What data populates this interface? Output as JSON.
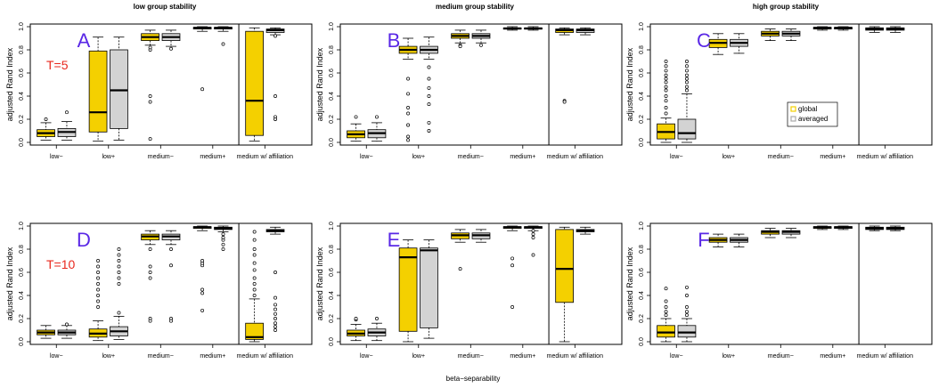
{
  "figure": {
    "column_titles": [
      "low group stability",
      "medium group stability",
      "high group stability"
    ],
    "xlabel": "beta−separability",
    "ylabel": "adjusted Rand Index",
    "categories": [
      "low−",
      "low+",
      "medium−",
      "medium+",
      "medium w/ affiliation"
    ],
    "y_ticks": [
      "0.0",
      "0.2",
      "0.4",
      "0.6",
      "0.8",
      "1.0"
    ],
    "legend": {
      "global": "global",
      "averaged": "averaged"
    },
    "colors": {
      "global": "#f4d000",
      "averaged": "#d3d3d3",
      "letter": "#5a28e6",
      "tlabel": "#e8281e"
    }
  },
  "chart_data": [
    {
      "type": "box",
      "panel": "A",
      "title": "low group stability",
      "annotation": "T=5",
      "xlabel": "",
      "ylabel": "adjusted Rand Index",
      "ylim": [
        0,
        1
      ],
      "categories": [
        "low−",
        "low+",
        "medium−",
        "medium+",
        "medium w/ affiliation"
      ],
      "series": [
        {
          "name": "global",
          "boxes": [
            {
              "min": 0.02,
              "q1": 0.05,
              "median": 0.08,
              "q3": 0.11,
              "max": 0.17,
              "outliers": [
                0.2
              ]
            },
            {
              "min": 0.01,
              "q1": 0.09,
              "median": 0.26,
              "q3": 0.79,
              "max": 0.91,
              "outliers": []
            },
            {
              "min": 0.84,
              "q1": 0.88,
              "median": 0.91,
              "q3": 0.94,
              "max": 0.97,
              "outliers": [
                0.4,
                0.35,
                0.03,
                0.8,
                0.82
              ]
            },
            {
              "min": 0.96,
              "q1": 0.98,
              "median": 0.99,
              "q3": 0.995,
              "max": 1.0,
              "outliers": [
                0.46
              ]
            },
            {
              "min": 0.01,
              "q1": 0.06,
              "median": 0.36,
              "q3": 0.96,
              "max": 0.99,
              "outliers": []
            }
          ]
        },
        {
          "name": "averaged",
          "boxes": [
            {
              "min": 0.02,
              "q1": 0.05,
              "median": 0.09,
              "q3": 0.12,
              "max": 0.18,
              "outliers": [
                0.26
              ]
            },
            {
              "min": 0.02,
              "q1": 0.12,
              "median": 0.45,
              "q3": 0.8,
              "max": 0.91,
              "outliers": []
            },
            {
              "min": 0.83,
              "q1": 0.88,
              "median": 0.91,
              "q3": 0.94,
              "max": 0.97,
              "outliers": [
                0.81
              ]
            },
            {
              "min": 0.96,
              "q1": 0.98,
              "median": 0.99,
              "q3": 0.995,
              "max": 1.0,
              "outliers": [
                0.85
              ]
            },
            {
              "min": 0.93,
              "q1": 0.95,
              "median": 0.97,
              "q3": 0.98,
              "max": 0.99,
              "outliers": [
                0.4,
                0.22,
                0.2,
                0.92
              ]
            }
          ]
        }
      ]
    },
    {
      "type": "box",
      "panel": "B",
      "title": "medium group stability",
      "xlabel": "",
      "ylabel": "adjusted Rand Index",
      "ylim": [
        0,
        1
      ],
      "categories": [
        "low−",
        "low+",
        "medium−",
        "medium+",
        "medium w/ affiliation"
      ],
      "series": [
        {
          "name": "global",
          "boxes": [
            {
              "min": 0.01,
              "q1": 0.04,
              "median": 0.07,
              "q3": 0.1,
              "max": 0.16,
              "outliers": [
                0.22
              ]
            },
            {
              "min": 0.72,
              "q1": 0.77,
              "median": 0.8,
              "q3": 0.83,
              "max": 0.9,
              "outliers": [
                0.55,
                0.42,
                0.3,
                0.25,
                0.15,
                0.05,
                0.02
              ]
            },
            {
              "min": 0.86,
              "q1": 0.9,
              "median": 0.92,
              "q3": 0.94,
              "max": 0.97,
              "outliers": [
                0.84,
                0.83
              ]
            },
            {
              "min": 0.97,
              "q1": 0.98,
              "median": 0.985,
              "q3": 0.99,
              "max": 1.0,
              "outliers": []
            },
            {
              "min": 0.93,
              "q1": 0.95,
              "median": 0.97,
              "q3": 0.98,
              "max": 0.99,
              "outliers": [
                0.36,
                0.35
              ]
            }
          ]
        },
        {
          "name": "averaged",
          "boxes": [
            {
              "min": 0.01,
              "q1": 0.04,
              "median": 0.08,
              "q3": 0.11,
              "max": 0.17,
              "outliers": [
                0.22
              ]
            },
            {
              "min": 0.72,
              "q1": 0.77,
              "median": 0.8,
              "q3": 0.83,
              "max": 0.91,
              "outliers": [
                0.65,
                0.55,
                0.47,
                0.4,
                0.33,
                0.17,
                0.1
              ]
            },
            {
              "min": 0.86,
              "q1": 0.9,
              "median": 0.92,
              "q3": 0.94,
              "max": 0.97,
              "outliers": [
                0.84
              ]
            },
            {
              "min": 0.97,
              "q1": 0.98,
              "median": 0.985,
              "q3": 0.99,
              "max": 1.0,
              "outliers": []
            },
            {
              "min": 0.93,
              "q1": 0.95,
              "median": 0.97,
              "q3": 0.98,
              "max": 0.99,
              "outliers": []
            }
          ]
        }
      ]
    },
    {
      "type": "box",
      "panel": "C",
      "title": "high group stability",
      "xlabel": "",
      "ylabel": "adjusted Rand Index",
      "ylim": [
        0,
        1
      ],
      "legend": "center-right",
      "categories": [
        "low−",
        "low+",
        "medium−",
        "medium+",
        "medium w/ affiliation"
      ],
      "series": [
        {
          "name": "global",
          "boxes": [
            {
              "min": 0.0,
              "q1": 0.03,
              "median": 0.09,
              "q3": 0.16,
              "max": 0.21,
              "outliers": [
                0.25,
                0.3,
                0.36,
                0.4,
                0.45,
                0.48,
                0.52,
                0.55,
                0.58,
                0.62,
                0.66,
                0.7
              ]
            },
            {
              "min": 0.76,
              "q1": 0.82,
              "median": 0.86,
              "q3": 0.89,
              "max": 0.94,
              "outliers": []
            },
            {
              "min": 0.88,
              "q1": 0.92,
              "median": 0.94,
              "q3": 0.96,
              "max": 0.98,
              "outliers": []
            },
            {
              "min": 0.97,
              "q1": 0.98,
              "median": 0.99,
              "q3": 0.995,
              "max": 1.0,
              "outliers": []
            },
            {
              "min": 0.95,
              "q1": 0.97,
              "median": 0.98,
              "q3": 0.99,
              "max": 1.0,
              "outliers": []
            }
          ]
        },
        {
          "name": "averaged",
          "boxes": [
            {
              "min": 0.0,
              "q1": 0.03,
              "median": 0.08,
              "q3": 0.2,
              "max": 0.42,
              "outliers": [
                0.45,
                0.48,
                0.52,
                0.55,
                0.58,
                0.62,
                0.66,
                0.7
              ]
            },
            {
              "min": 0.77,
              "q1": 0.83,
              "median": 0.86,
              "q3": 0.89,
              "max": 0.94,
              "outliers": []
            },
            {
              "min": 0.88,
              "q1": 0.92,
              "median": 0.94,
              "q3": 0.96,
              "max": 0.98,
              "outliers": []
            },
            {
              "min": 0.97,
              "q1": 0.98,
              "median": 0.99,
              "q3": 0.995,
              "max": 1.0,
              "outliers": []
            },
            {
              "min": 0.95,
              "q1": 0.97,
              "median": 0.98,
              "q3": 0.99,
              "max": 1.0,
              "outliers": []
            }
          ]
        }
      ]
    },
    {
      "type": "box",
      "panel": "D",
      "annotation": "T=10",
      "xlabel": "",
      "ylabel": "adjusted Rand Index",
      "ylim": [
        0,
        1
      ],
      "categories": [
        "low−",
        "low+",
        "medium−",
        "medium+",
        "medium w/ affiliation"
      ],
      "series": [
        {
          "name": "global",
          "boxes": [
            {
              "min": 0.03,
              "q1": 0.06,
              "median": 0.08,
              "q3": 0.1,
              "max": 0.14,
              "outliers": []
            },
            {
              "min": 0.01,
              "q1": 0.04,
              "median": 0.07,
              "q3": 0.11,
              "max": 0.18,
              "outliers": [
                0.3,
                0.35,
                0.4,
                0.45,
                0.5,
                0.55,
                0.6,
                0.65,
                0.7
              ]
            },
            {
              "min": 0.84,
              "q1": 0.88,
              "median": 0.91,
              "q3": 0.93,
              "max": 0.96,
              "outliers": [
                0.2,
                0.18,
                0.55,
                0.6,
                0.65,
                0.8
              ]
            },
            {
              "min": 0.96,
              "q1": 0.98,
              "median": 0.99,
              "q3": 0.995,
              "max": 1.0,
              "outliers": [
                0.27,
                0.42,
                0.45,
                0.66,
                0.68,
                0.7
              ]
            },
            {
              "min": 0.0,
              "q1": 0.02,
              "median": 0.04,
              "q3": 0.16,
              "max": 0.37,
              "outliers": [
                0.4,
                0.45,
                0.5,
                0.55,
                0.62,
                0.68,
                0.75,
                0.8,
                0.88,
                0.95
              ]
            }
          ]
        },
        {
          "name": "averaged",
          "boxes": [
            {
              "min": 0.03,
              "q1": 0.06,
              "median": 0.08,
              "q3": 0.1,
              "max": 0.14,
              "outliers": [
                0.15
              ]
            },
            {
              "min": 0.02,
              "q1": 0.05,
              "median": 0.09,
              "q3": 0.13,
              "max": 0.22,
              "outliers": [
                0.25,
                0.5,
                0.55,
                0.6,
                0.65,
                0.7,
                0.75,
                0.8
              ]
            },
            {
              "min": 0.84,
              "q1": 0.88,
              "median": 0.91,
              "q3": 0.93,
              "max": 0.96,
              "outliers": [
                0.2,
                0.18,
                0.66,
                0.8
              ]
            },
            {
              "min": 0.95,
              "q1": 0.97,
              "median": 0.98,
              "q3": 0.99,
              "max": 1.0,
              "outliers": [
                0.8,
                0.84,
                0.88,
                0.9,
                0.93
              ]
            },
            {
              "min": 0.93,
              "q1": 0.95,
              "median": 0.96,
              "q3": 0.97,
              "max": 0.99,
              "outliers": [
                0.1,
                0.13,
                0.16,
                0.2,
                0.24,
                0.28,
                0.32,
                0.38,
                0.6
              ]
            }
          ]
        }
      ]
    },
    {
      "type": "box",
      "panel": "E",
      "xlabel": "",
      "ylabel": "adjusted Rand Index",
      "ylim": [
        0,
        1
      ],
      "categories": [
        "low−",
        "low+",
        "medium−",
        "medium+",
        "medium w/ affiliation"
      ],
      "series": [
        {
          "name": "global",
          "boxes": [
            {
              "min": 0.01,
              "q1": 0.05,
              "median": 0.07,
              "q3": 0.1,
              "max": 0.15,
              "outliers": [
                0.19,
                0.2
              ]
            },
            {
              "min": 0.0,
              "q1": 0.09,
              "median": 0.73,
              "q3": 0.81,
              "max": 0.88,
              "outliers": []
            },
            {
              "min": 0.86,
              "q1": 0.89,
              "median": 0.92,
              "q3": 0.94,
              "max": 0.97,
              "outliers": [
                0.63
              ]
            },
            {
              "min": 0.96,
              "q1": 0.98,
              "median": 0.99,
              "q3": 0.995,
              "max": 1.0,
              "outliers": [
                0.3,
                0.66,
                0.72
              ]
            },
            {
              "min": 0.0,
              "q1": 0.34,
              "median": 0.63,
              "q3": 0.97,
              "max": 0.99,
              "outliers": []
            }
          ]
        },
        {
          "name": "averaged",
          "boxes": [
            {
              "min": 0.01,
              "q1": 0.05,
              "median": 0.08,
              "q3": 0.11,
              "max": 0.16,
              "outliers": [
                0.2
              ]
            },
            {
              "min": 0.03,
              "q1": 0.12,
              "median": 0.79,
              "q3": 0.81,
              "max": 0.88,
              "outliers": []
            },
            {
              "min": 0.86,
              "q1": 0.89,
              "median": 0.92,
              "q3": 0.94,
              "max": 0.97,
              "outliers": []
            },
            {
              "min": 0.96,
              "q1": 0.98,
              "median": 0.99,
              "q3": 0.995,
              "max": 1.0,
              "outliers": [
                0.75,
                0.9,
                0.93,
                0.96
              ]
            },
            {
              "min": 0.93,
              "q1": 0.95,
              "median": 0.96,
              "q3": 0.97,
              "max": 0.99,
              "outliers": []
            }
          ]
        }
      ]
    },
    {
      "type": "box",
      "panel": "F",
      "xlabel": "",
      "ylabel": "adjusted Rand Index",
      "ylim": [
        0,
        1
      ],
      "categories": [
        "low−",
        "low+",
        "medium−",
        "medium+",
        "medium w/ affiliation"
      ],
      "series": [
        {
          "name": "global",
          "boxes": [
            {
              "min": 0.0,
              "q1": 0.04,
              "median": 0.08,
              "q3": 0.14,
              "max": 0.2,
              "outliers": [
                0.23,
                0.26,
                0.3,
                0.35,
                0.46
              ]
            },
            {
              "min": 0.82,
              "q1": 0.86,
              "median": 0.88,
              "q3": 0.9,
              "max": 0.93,
              "outliers": []
            },
            {
              "min": 0.9,
              "q1": 0.93,
              "median": 0.95,
              "q3": 0.96,
              "max": 0.98,
              "outliers": []
            },
            {
              "min": 0.97,
              "q1": 0.98,
              "median": 0.99,
              "q3": 0.995,
              "max": 1.0,
              "outliers": []
            },
            {
              "min": 0.96,
              "q1": 0.97,
              "median": 0.98,
              "q3": 0.99,
              "max": 1.0,
              "outliers": []
            }
          ]
        },
        {
          "name": "averaged",
          "boxes": [
            {
              "min": 0.0,
              "q1": 0.04,
              "median": 0.08,
              "q3": 0.14,
              "max": 0.2,
              "outliers": [
                0.23,
                0.26,
                0.3,
                0.4,
                0.47
              ]
            },
            {
              "min": 0.82,
              "q1": 0.86,
              "median": 0.88,
              "q3": 0.9,
              "max": 0.93,
              "outliers": []
            },
            {
              "min": 0.9,
              "q1": 0.93,
              "median": 0.95,
              "q3": 0.96,
              "max": 0.98,
              "outliers": []
            },
            {
              "min": 0.97,
              "q1": 0.98,
              "median": 0.99,
              "q3": 0.995,
              "max": 1.0,
              "outliers": []
            },
            {
              "min": 0.96,
              "q1": 0.97,
              "median": 0.98,
              "q3": 0.99,
              "max": 1.0,
              "outliers": []
            }
          ]
        }
      ]
    }
  ]
}
